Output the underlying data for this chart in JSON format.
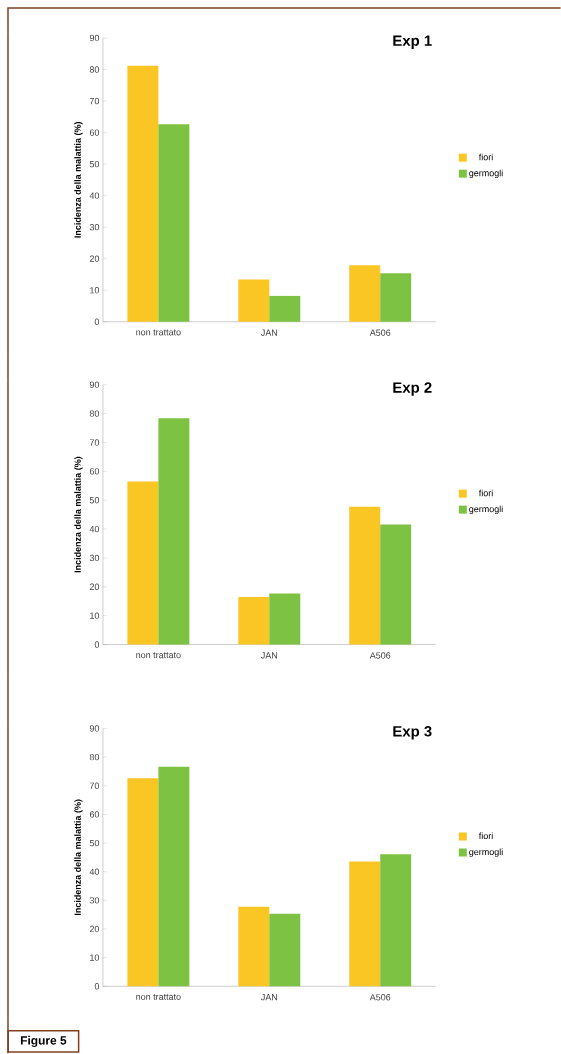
{
  "chart_data": [
    {
      "type": "bar",
      "title": "Exp 1",
      "ylabel": "Incidenza della malattia (%)",
      "categories": [
        "non trattato",
        "JAN",
        "A506"
      ],
      "series": [
        {
          "name": "fiori",
          "color": "#f9c623",
          "values": [
            81.2,
            13.4,
            17.9
          ]
        },
        {
          "name": "germogli",
          "color": "#7dc242",
          "values": [
            62.6,
            8.2,
            15.4
          ]
        }
      ],
      "ylim": [
        0,
        90
      ],
      "yticks": [
        0,
        10,
        20,
        30,
        40,
        50,
        60,
        70,
        80,
        90
      ],
      "legend": "right"
    },
    {
      "type": "bar",
      "title": "Exp 2",
      "ylabel": "Incidenza della malattia (%)",
      "categories": [
        "non trattato",
        "JAN",
        "A506"
      ],
      "series": [
        {
          "name": "fiori",
          "color": "#f9c623",
          "values": [
            56.5,
            16.5,
            47.7
          ]
        },
        {
          "name": "germogli",
          "color": "#7dc242",
          "values": [
            78.4,
            17.7,
            41.6
          ]
        }
      ],
      "ylim": [
        0,
        90
      ],
      "yticks": [
        0,
        10,
        20,
        30,
        40,
        50,
        60,
        70,
        80,
        90
      ],
      "legend": "right"
    },
    {
      "type": "bar",
      "title": "Exp 3",
      "ylabel": "Incidenza della malattia (%)",
      "categories": [
        "non trattato",
        "JAN",
        "A506"
      ],
      "series": [
        {
          "name": "fiori",
          "color": "#f9c623",
          "values": [
            72.6,
            27.8,
            43.6
          ]
        },
        {
          "name": "germogli",
          "color": "#7dc242",
          "values": [
            76.6,
            25.3,
            46.1
          ]
        }
      ],
      "ylim": [
        0,
        90
      ],
      "yticks": [
        0,
        10,
        20,
        30,
        40,
        50,
        60,
        70,
        80,
        90
      ],
      "legend": "right",
      "annotations": [
        "Figure 5"
      ]
    }
  ]
}
